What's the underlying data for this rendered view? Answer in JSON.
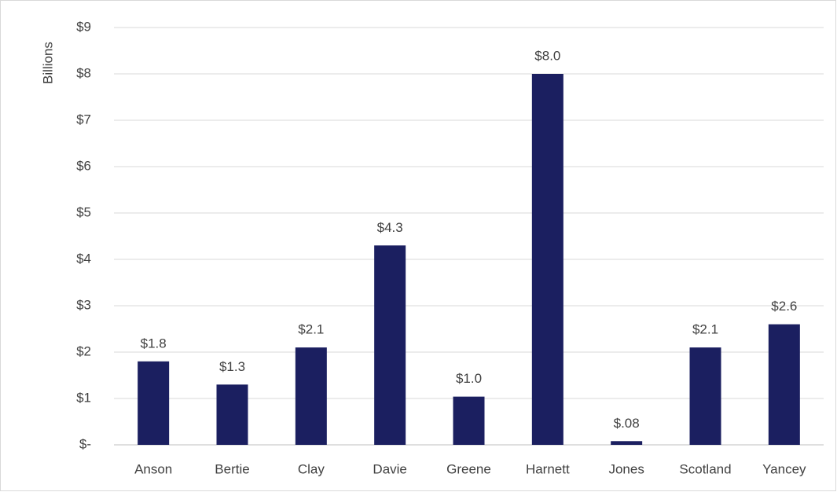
{
  "chart_data": {
    "type": "bar",
    "y_label": "Billions",
    "categories": [
      "Anson",
      "Bertie",
      "Clay",
      "Davie",
      "Greene",
      "Harnett",
      "Jones",
      "Scotland",
      "Yancey"
    ],
    "values": [
      1.8,
      1.3,
      2.1,
      4.3,
      1.04,
      8.0,
      0.08,
      2.1,
      2.6
    ],
    "value_labels": [
      "$1.8",
      "$1.3",
      "$2.1",
      "$4.3",
      "$1.0",
      "$8.0",
      "$.08",
      "$2.1",
      "$2.6"
    ],
    "color": "#1b1f60",
    "ylim": [
      0,
      9
    ],
    "yticks": [
      {
        "value": 0,
        "label": "$-"
      },
      {
        "value": 1,
        "label": "$1"
      },
      {
        "value": 2,
        "label": "$2"
      },
      {
        "value": 3,
        "label": "$3"
      },
      {
        "value": 4,
        "label": "$4"
      },
      {
        "value": 5,
        "label": "$5"
      },
      {
        "value": 6,
        "label": "$6"
      },
      {
        "value": 7,
        "label": "$7"
      },
      {
        "value": 8,
        "label": "$8"
      },
      {
        "value": 9,
        "label": "$9"
      }
    ],
    "grid": true
  }
}
